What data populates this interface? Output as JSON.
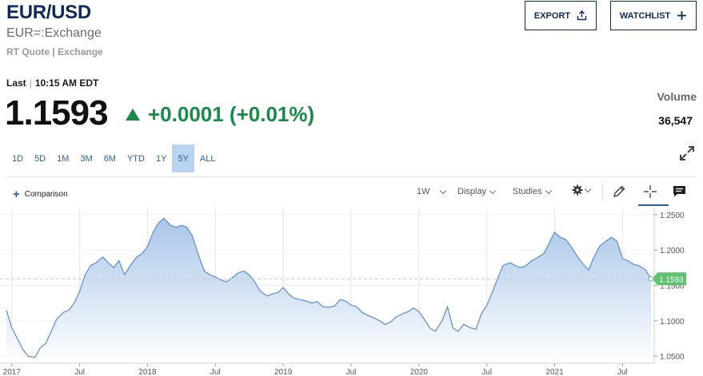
{
  "header": {
    "symbol": "EUR/USD",
    "name": "EUR=:Exchange",
    "quote_type": "RT Quote | Exchange",
    "export_label": "EXPORT",
    "watchlist_label": "WATCHLIST"
  },
  "quote": {
    "last_label": "Last",
    "time": "10:15 AM EDT",
    "price": "1.1593",
    "change": "+0.0001 (+0.01%)",
    "change_color": "#1a8a4a",
    "volume_label": "Volume",
    "volume": "36,547"
  },
  "ranges": [
    "1D",
    "5D",
    "1M",
    "3M",
    "6M",
    "YTD",
    "1Y",
    "5Y",
    "ALL"
  ],
  "active_range": "5Y",
  "toolbar": {
    "comparison_label": "Comparison",
    "interval": "1W",
    "display_label": "Display",
    "studies_label": "Studies",
    "icons": [
      "gear-icon",
      "pencil-icon",
      "crosshair-icon",
      "comment-icon",
      "expand-icon"
    ]
  },
  "chart_data": {
    "type": "area",
    "x_ticks": [
      "2017",
      "Jul",
      "2018",
      "Jul",
      "2019",
      "Jul",
      "2020",
      "Jul",
      "2021",
      "Jul"
    ],
    "y_ticks": [
      "1.2500",
      "1.2000",
      "1.1500",
      "1.1000",
      "1.0500"
    ],
    "ylim": [
      1.04,
      1.26
    ],
    "current_label": "1.1593",
    "current_value": 1.1593,
    "series": [
      {
        "x": [
          2016.96,
          2017.0,
          2017.04,
          2017.08,
          2017.12,
          2017.17,
          2017.21,
          2017.25,
          2017.29,
          2017.33,
          2017.38,
          2017.42,
          2017.46,
          2017.5,
          2017.54,
          2017.58,
          2017.62,
          2017.67,
          2017.71,
          2017.75,
          2017.79,
          2017.83,
          2017.88,
          2017.92,
          2017.96,
          2018.0,
          2018.04,
          2018.08,
          2018.12,
          2018.17,
          2018.21,
          2018.25,
          2018.29,
          2018.33,
          2018.38,
          2018.42,
          2018.46,
          2018.5,
          2018.54,
          2018.58,
          2018.62,
          2018.67,
          2018.71,
          2018.75,
          2018.79,
          2018.83,
          2018.88,
          2018.92,
          2018.96,
          2019.0,
          2019.04,
          2019.08,
          2019.12,
          2019.17,
          2019.21,
          2019.25,
          2019.29,
          2019.33,
          2019.38,
          2019.42,
          2019.46,
          2019.5,
          2019.54,
          2019.58,
          2019.62,
          2019.67,
          2019.71,
          2019.75,
          2019.79,
          2019.83,
          2019.88,
          2019.92,
          2019.96,
          2020.0,
          2020.04,
          2020.08,
          2020.12,
          2020.17,
          2020.21,
          2020.25,
          2020.29,
          2020.33,
          2020.38,
          2020.42,
          2020.46,
          2020.5,
          2020.54,
          2020.58,
          2020.62,
          2020.67,
          2020.71,
          2020.75,
          2020.79,
          2020.83,
          2020.88,
          2020.92,
          2020.96,
          2021.0,
          2021.04,
          2021.08,
          2021.12,
          2021.17,
          2021.21,
          2021.25,
          2021.29,
          2021.33,
          2021.38,
          2021.42,
          2021.46,
          2021.5,
          2021.54,
          2021.58,
          2021.62,
          2021.67,
          2021.71
        ],
        "values": [
          1.115,
          1.09,
          1.075,
          1.06,
          1.05,
          1.048,
          1.062,
          1.068,
          1.085,
          1.102,
          1.112,
          1.115,
          1.125,
          1.142,
          1.165,
          1.178,
          1.182,
          1.19,
          1.182,
          1.175,
          1.185,
          1.165,
          1.18,
          1.19,
          1.195,
          1.205,
          1.225,
          1.238,
          1.245,
          1.235,
          1.232,
          1.235,
          1.232,
          1.22,
          1.19,
          1.17,
          1.165,
          1.162,
          1.158,
          1.155,
          1.16,
          1.168,
          1.17,
          1.165,
          1.155,
          1.142,
          1.135,
          1.138,
          1.14,
          1.147,
          1.138,
          1.132,
          1.13,
          1.128,
          1.125,
          1.127,
          1.12,
          1.119,
          1.121,
          1.13,
          1.128,
          1.122,
          1.12,
          1.112,
          1.108,
          1.104,
          1.1,
          1.095,
          1.098,
          1.105,
          1.11,
          1.113,
          1.118,
          1.113,
          1.102,
          1.09,
          1.085,
          1.1,
          1.12,
          1.09,
          1.085,
          1.095,
          1.09,
          1.088,
          1.11,
          1.122,
          1.14,
          1.16,
          1.178,
          1.182,
          1.178,
          1.175,
          1.178,
          1.185,
          1.19,
          1.195,
          1.21,
          1.225,
          1.218,
          1.215,
          1.205,
          1.19,
          1.18,
          1.172,
          1.19,
          1.205,
          1.213,
          1.218,
          1.212,
          1.188,
          1.185,
          1.18,
          1.178,
          1.172,
          1.1593
        ]
      }
    ],
    "colors": {
      "line": "#5c8dc6",
      "area_top": "#a9c6e8",
      "area_bottom": "#ffffff",
      "price_tag": "#5fc26f"
    },
    "grid": true
  }
}
